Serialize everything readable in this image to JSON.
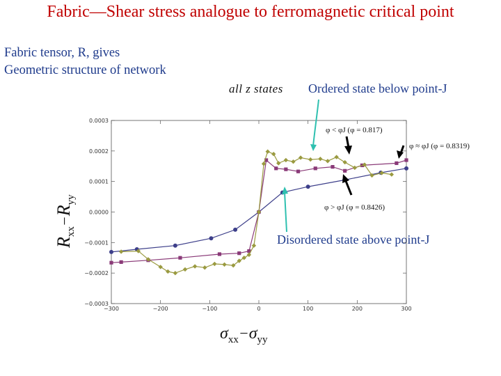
{
  "slide": {
    "title": "Fabric—Shear stress analogue to ferromagnetic critical point",
    "subtitle_line1": "Fabric tensor, R, gives",
    "subtitle_line2": "Geometric structure of network",
    "states_label": "all  z  states",
    "ordered_note": "Ordered state below point-J",
    "disordered_note": "Disordered state above point-J"
  },
  "colors": {
    "title": "#c00000",
    "text": "#1f3b8c",
    "arrow": "#2fc0b0",
    "navy": "#3d3f8a",
    "purple": "#8a3a78",
    "olive": "#9a9a40"
  },
  "chart_data": {
    "type": "line",
    "xlabel": {
      "main": "σ",
      "sub1": "xx",
      "dash": "−",
      "main2": "σ",
      "sub2": "yy"
    },
    "ylabel": {
      "main": "R",
      "sub1": "xx",
      "dash": "−",
      "main2": "R",
      "sub2": "yy"
    },
    "xlim": [
      -300,
      300
    ],
    "ylim": [
      -0.0003,
      0.0003
    ],
    "xticks": [
      -300,
      -200,
      -100,
      0,
      100,
      200,
      300
    ],
    "xtick_labels": [
      "−300",
      "−200",
      "−100",
      "0",
      "100",
      "200",
      "300"
    ],
    "yticks": [
      -0.0003,
      -0.0002,
      -0.0001,
      0,
      0.0001,
      0.0002,
      0.0003
    ],
    "ytick_labels": [
      "−0.0003",
      "−0.0002",
      "−0.0001",
      "0.0000",
      "0.0001",
      "0.0002",
      "0.0003"
    ],
    "annotations": {
      "phi_lt": "φ < φJ  (φ = 0.817)",
      "phi_eq": "φ ≈ φJ  (φ = 0.8319)",
      "phi_gt": "φ > φJ  (φ = 0.8426)"
    },
    "series": [
      {
        "name": "φ = 0.8426",
        "color": "#3d3f8a",
        "marker": "circle",
        "x": [
          -300,
          -248,
          -170,
          -97,
          -48,
          0,
          48,
          100,
          174,
          248,
          300
        ],
        "y": [
          -0.000131,
          -0.000122,
          -0.00011,
          -8.6e-05,
          -5.8e-05,
          0,
          6.4e-05,
          8.3e-05,
          0.000105,
          0.000129,
          0.000143
        ]
      },
      {
        "name": "φ = 0.8319",
        "color": "#8a3a78",
        "marker": "square",
        "x": [
          -300,
          -280,
          -225,
          -160,
          -80,
          -40,
          -20,
          0,
          15,
          35,
          55,
          80,
          115,
          150,
          175,
          210,
          280,
          300
        ],
        "y": [
          -0.000166,
          -0.000164,
          -0.000158,
          -0.00015,
          -0.000138,
          -0.000135,
          -0.000128,
          0,
          0.00017,
          0.000143,
          0.00014,
          0.000133,
          0.000143,
          0.000148,
          0.000135,
          0.000153,
          0.00016,
          0.00017
        ]
      },
      {
        "name": "φ = 0.817",
        "color": "#9a9a40",
        "marker": "diamond",
        "x": [
          -280,
          -245,
          -225,
          -200,
          -185,
          -170,
          -150,
          -130,
          -110,
          -90,
          -70,
          -52,
          -40,
          -30,
          -20,
          -10,
          0,
          10,
          18,
          30,
          40,
          55,
          70,
          85,
          105,
          125,
          140,
          158,
          175,
          195,
          215,
          230,
          250,
          270
        ],
        "y": [
          -0.00013,
          -0.000128,
          -0.000155,
          -0.00018,
          -0.000195,
          -0.0002,
          -0.000188,
          -0.000178,
          -0.000182,
          -0.00017,
          -0.000172,
          -0.000175,
          -0.00016,
          -0.00015,
          -0.00014,
          -0.00011,
          0,
          0.000158,
          0.000198,
          0.00019,
          0.00016,
          0.00017,
          0.000165,
          0.000178,
          0.000172,
          0.000174,
          0.000167,
          0.00018,
          0.000163,
          0.000145,
          0.000155,
          0.00012,
          0.000128,
          0.000123
        ]
      }
    ]
  }
}
